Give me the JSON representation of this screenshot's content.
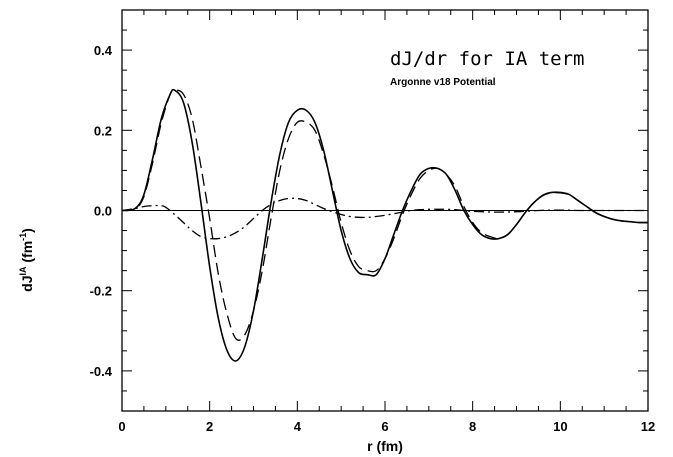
{
  "chart_data": {
    "type": "line",
    "title": "dJ/dr for IA term",
    "subtitle": "Argonne v18 Potential",
    "xlabel": "r (fm)",
    "ylabel_main": "dJ",
    "ylabel_sup": "IA",
    "ylabel_unit": " (fm",
    "ylabel_unit_sup": "-1",
    "ylabel_close": ")",
    "xlim": [
      0,
      12
    ],
    "ylim": [
      -0.5,
      0.5
    ],
    "xticks": [
      0,
      2,
      4,
      6,
      8,
      10,
      12
    ],
    "xtick_labels": [
      "0",
      "2",
      "4",
      "6",
      "8",
      "10",
      "12"
    ],
    "yticks": [
      -0.4,
      -0.2,
      0.0,
      0.2,
      0.4
    ],
    "ytick_labels": [
      "-0.4",
      "-0.2",
      "0.0",
      "0.2",
      "0.4"
    ],
    "reference_line_y": 0,
    "series": [
      {
        "style": "solid",
        "x": [
          0,
          0.3,
          0.5,
          0.7,
          0.9,
          1.1,
          1.2,
          1.4,
          1.6,
          1.8,
          2.0,
          2.2,
          2.4,
          2.6,
          2.8,
          3.0,
          3.2,
          3.4,
          3.6,
          3.8,
          4.0,
          4.2,
          4.4,
          4.6,
          4.8,
          5.0,
          5.2,
          5.4,
          5.6,
          5.8,
          6.0,
          6.2,
          6.4,
          6.6,
          6.8,
          7.0,
          7.2,
          7.4,
          7.6,
          7.8,
          8.0,
          8.2,
          8.4,
          8.6,
          8.8,
          9.0,
          9.2,
          9.4,
          9.6,
          9.8,
          10.0,
          10.2,
          10.4,
          10.6,
          10.8,
          11.0,
          11.2,
          11.4,
          11.6,
          11.8,
          12.0
        ],
        "y": [
          0.0,
          0.005,
          0.04,
          0.13,
          0.23,
          0.29,
          0.3,
          0.27,
          0.17,
          0.02,
          -0.14,
          -0.27,
          -0.35,
          -0.375,
          -0.34,
          -0.25,
          -0.12,
          0.02,
          0.14,
          0.22,
          0.25,
          0.25,
          0.22,
          0.15,
          0.05,
          -0.05,
          -0.12,
          -0.155,
          -0.16,
          -0.16,
          -0.12,
          -0.06,
          0.0,
          0.05,
          0.09,
          0.105,
          0.105,
          0.09,
          0.05,
          0.0,
          -0.035,
          -0.06,
          -0.07,
          -0.07,
          -0.06,
          -0.035,
          -0.005,
          0.02,
          0.038,
          0.045,
          0.045,
          0.04,
          0.025,
          0.01,
          -0.005,
          -0.015,
          -0.022,
          -0.026,
          -0.028,
          -0.03,
          -0.03
        ]
      },
      {
        "style": "dashed",
        "x": [
          0,
          0.3,
          0.5,
          0.7,
          0.9,
          1.1,
          1.2,
          1.4,
          1.6,
          1.8,
          2.0,
          2.2,
          2.4,
          2.6,
          2.8,
          3.0,
          3.2,
          3.4,
          3.6,
          3.8,
          4.0,
          4.2,
          4.4,
          4.6,
          4.8,
          5.0,
          5.2,
          5.4,
          5.6,
          5.8,
          6.0,
          6.2,
          6.4,
          6.6,
          6.8,
          7.0,
          7.2,
          7.4,
          7.6,
          7.8,
          8.0,
          8.2,
          8.4,
          8.6,
          8.8,
          9.0,
          9.2,
          9.4,
          9.6,
          9.8,
          10.0,
          10.2,
          10.4,
          10.6,
          10.8,
          11.0,
          11.2,
          11.4,
          11.6,
          11.8,
          12.0
        ],
        "y": [
          0.0,
          0.004,
          0.035,
          0.12,
          0.22,
          0.29,
          0.3,
          0.29,
          0.23,
          0.11,
          -0.02,
          -0.16,
          -0.26,
          -0.32,
          -0.31,
          -0.25,
          -0.15,
          -0.02,
          0.1,
          0.18,
          0.22,
          0.22,
          0.2,
          0.14,
          0.06,
          -0.03,
          -0.1,
          -0.14,
          -0.15,
          -0.15,
          -0.12,
          -0.07,
          -0.01,
          0.04,
          0.08,
          0.1,
          0.105,
          0.09,
          0.06,
          0.01,
          -0.03,
          -0.055,
          -0.065,
          -0.07,
          -0.06,
          -0.035,
          -0.005,
          0.02,
          0.037,
          0.044,
          0.044,
          0.039,
          0.025,
          0.01,
          -0.005,
          -0.015,
          -0.022,
          -0.026,
          -0.028,
          -0.03,
          -0.03
        ]
      },
      {
        "style": "dashdot",
        "x": [
          0,
          0.3,
          0.5,
          0.7,
          0.9,
          1.0,
          1.2,
          1.4,
          1.6,
          1.8,
          2.0,
          2.2,
          2.4,
          2.6,
          2.8,
          3.0,
          3.2,
          3.4,
          3.6,
          3.8,
          4.0,
          4.2,
          4.4,
          4.6,
          4.8,
          5.0,
          5.2,
          5.4,
          5.6,
          5.8,
          6.0,
          6.2,
          6.4,
          6.6,
          6.8,
          7.0,
          7.2,
          7.4,
          7.6,
          7.8,
          8.0,
          8.5,
          9.0,
          9.5,
          10.0,
          10.5,
          11.0,
          11.5,
          12.0
        ],
        "y": [
          0.0,
          0.005,
          0.01,
          0.012,
          0.012,
          0.008,
          -0.01,
          -0.03,
          -0.05,
          -0.065,
          -0.07,
          -0.07,
          -0.065,
          -0.055,
          -0.04,
          -0.02,
          0.0,
          0.015,
          0.025,
          0.03,
          0.03,
          0.025,
          0.015,
          0.005,
          -0.003,
          -0.01,
          -0.015,
          -0.017,
          -0.017,
          -0.015,
          -0.012,
          -0.008,
          -0.004,
          0.0,
          0.002,
          0.003,
          0.003,
          0.003,
          0.002,
          0.0,
          -0.002,
          -0.004,
          -0.003,
          0.0,
          0.001,
          0.0,
          0.0,
          0.0,
          0.0
        ]
      }
    ]
  }
}
